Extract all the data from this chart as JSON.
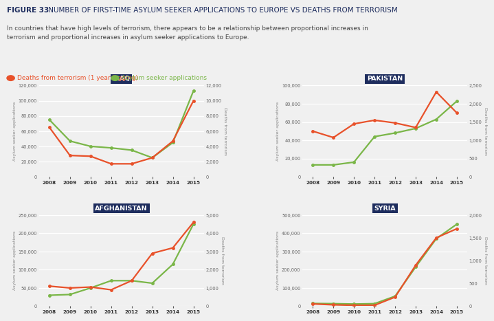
{
  "title_bold": "FIGURE 33",
  "title_rest": " NUMBER OF FIRST-TIME ASYLUM SEEKER APPLICATIONS TO EUROPE VS DEATHS FROM TERRORISM",
  "subtitle": "In countries that have high levels of terrorism, there appears to be a relationship between proportional increases in\nterrorism and proportional increases in asylum seeker applications to Europe.",
  "legend_deaths": "Deaths from terrorism (1 year lagging)",
  "legend_asylum": "Asylum seeker applications",
  "color_deaths": "#e8512a",
  "color_asylum": "#7ab648",
  "bg_color": "#f0f0f0",
  "title_color": "#1e2d5e",
  "text_color": "#3d3d3d",
  "years": [
    2008,
    2009,
    2010,
    2011,
    2012,
    2013,
    2014,
    2015
  ],
  "iraq": {
    "title": "IRAQ",
    "asylum": [
      75000,
      47000,
      40000,
      38000,
      35000,
      25000,
      45000,
      113000
    ],
    "deaths": [
      6500,
      2800,
      2700,
      1700,
      1700,
      2500,
      4700,
      10000
    ],
    "ylim_left": [
      0,
      120000
    ],
    "ylim_right": [
      0,
      12000
    ],
    "yticks_left": [
      0,
      20000,
      40000,
      60000,
      80000,
      100000,
      120000
    ],
    "yticks_right": [
      0,
      2000,
      4000,
      6000,
      8000,
      10000,
      12000
    ]
  },
  "pakistan": {
    "title": "PAKISTAN",
    "asylum": [
      13000,
      13000,
      16000,
      44000,
      48000,
      53000,
      63000,
      83000
    ],
    "deaths": [
      1250,
      1075,
      1450,
      1550,
      1475,
      1350,
      2325,
      1750
    ],
    "ylim_left": [
      0,
      100000
    ],
    "ylim_right": [
      0,
      2500
    ],
    "yticks_left": [
      0,
      20000,
      40000,
      60000,
      80000,
      100000
    ],
    "yticks_right": [
      0,
      500,
      1000,
      1500,
      2000,
      2500
    ]
  },
  "afghanistan": {
    "title": "AFGHANISTAN",
    "asylum": [
      30000,
      32000,
      50000,
      70000,
      70000,
      63000,
      115000,
      225000
    ],
    "deaths": [
      1100,
      1000,
      1050,
      900,
      1400,
      2900,
      3200,
      4600
    ],
    "ylim_left": [
      0,
      250000
    ],
    "ylim_right": [
      0,
      5000
    ],
    "yticks_left": [
      0,
      50000,
      100000,
      150000,
      200000,
      250000
    ],
    "yticks_right": [
      0,
      1000,
      2000,
      3000,
      4000,
      5000
    ]
  },
  "syria": {
    "title": "SYRIA",
    "asylum": [
      15000,
      14000,
      12000,
      14000,
      55000,
      215000,
      370000,
      450000
    ],
    "deaths": [
      50,
      30,
      20,
      20,
      200,
      900,
      1500,
      1700
    ],
    "ylim_left": [
      0,
      500000
    ],
    "ylim_right": [
      0,
      2000
    ],
    "yticks_left": [
      0,
      100000,
      200000,
      300000,
      400000,
      500000
    ],
    "yticks_right": [
      0,
      500,
      1000,
      1500,
      2000
    ]
  }
}
